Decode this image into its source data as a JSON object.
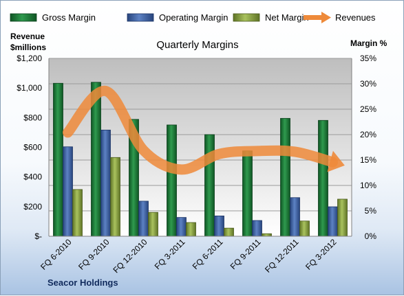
{
  "chart_data": {
    "type": "bar",
    "title": "Quarterly Margins",
    "company": "Seacor Holdings",
    "left_axis_label": [
      "Revenue",
      "$millions"
    ],
    "right_axis_label": "Margin %",
    "categories": [
      "FQ 6-2010",
      "FQ 9-2010",
      "FQ 12-2010",
      "FQ 3-2011",
      "FQ 6-2011",
      "FQ 9-2011",
      "FQ 12-2011",
      "FQ 3-2012"
    ],
    "left_ticks": [
      "$-",
      "$200",
      "$400",
      "$600",
      "$800",
      "$1,000",
      "$1,200"
    ],
    "right_ticks": [
      "0%",
      "5%",
      "10%",
      "15%",
      "20%",
      "25%",
      "30%",
      "35%"
    ],
    "ylim_left": [
      0,
      1200
    ],
    "ylim_right": [
      0,
      35
    ],
    "grid": true,
    "legend_position": "top",
    "series": [
      {
        "name": "Gross Margin",
        "kind": "bar",
        "axis": "right",
        "color": "#1f7a3a",
        "values": [
          30.1,
          30.3,
          23.0,
          21.9,
          20.0,
          16.8,
          23.2,
          22.8
        ]
      },
      {
        "name": "Operating Margin",
        "kind": "bar",
        "axis": "right",
        "color": "#3f63a8",
        "values": [
          17.6,
          20.9,
          6.9,
          3.7,
          4.0,
          3.1,
          7.6,
          5.8
        ]
      },
      {
        "name": "Net Margin",
        "kind": "bar",
        "axis": "right",
        "color": "#92ac4a",
        "values": [
          9.2,
          15.5,
          4.7,
          2.7,
          1.6,
          0.5,
          3.0,
          7.3
        ]
      },
      {
        "name": "Revenues",
        "kind": "line",
        "axis": "left",
        "color": "#ee8a3a",
        "values": [
          700,
          980,
          580,
          450,
          555,
          575,
          570,
          500
        ]
      }
    ]
  }
}
